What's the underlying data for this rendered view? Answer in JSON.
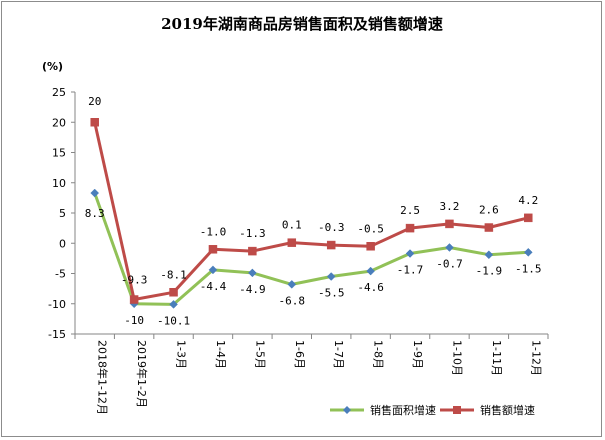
{
  "chart_data": {
    "type": "line",
    "title": "2019年湖南商品房销售面积及销售额增速",
    "ylabel": "(%)",
    "xlabel": "",
    "ylim": [
      -15,
      25
    ],
    "ytick_step": 5,
    "categories": [
      "2018年1-12月",
      "2019年1-2月",
      "1-3月",
      "1-4月",
      "1-5月",
      "1-6月",
      "1-7月",
      "1-8月",
      "1-9月",
      "1-10月",
      "1-11月",
      "1-12月"
    ],
    "series": [
      {
        "name": "销售面积增速",
        "color": "#91c157",
        "marker_color": "#4a7ebb",
        "marker": "diamond",
        "values": [
          8.3,
          -10,
          -10.1,
          -4.4,
          -4.9,
          -6.8,
          -5.5,
          -4.6,
          -1.7,
          -0.7,
          -1.9,
          -1.5
        ],
        "labels": [
          "8.3",
          "-10",
          "-10.1",
          "-4.4",
          "-4.9",
          "-6.8",
          "-5.5",
          "-4.6",
          "-1.7",
          "-0.7",
          "-1.9",
          "-1.5"
        ]
      },
      {
        "name": "销售额增速",
        "color": "#be4b48",
        "marker_color": "#be4b48",
        "marker": "square",
        "values": [
          20,
          -9.3,
          -8.1,
          -1.0,
          -1.3,
          0.1,
          -0.3,
          -0.5,
          2.5,
          3.2,
          2.6,
          4.2
        ],
        "labels": [
          "20",
          "-9.3",
          "-8.1",
          "-1.0",
          "-1.3",
          "0.1",
          "-0.3",
          "-0.5",
          "2.5",
          "3.2",
          "2.6",
          "4.2"
        ]
      }
    ],
    "grid": false,
    "legend_position": "bottom-right"
  }
}
